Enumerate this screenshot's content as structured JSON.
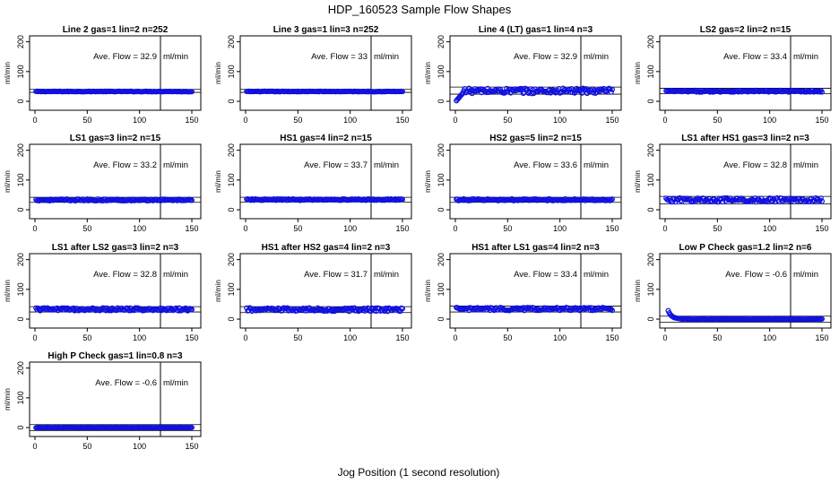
{
  "figure": {
    "title": "HDP_160523  Sample Flow Shapes",
    "xlabel": "Jog Position (1 second resolution)"
  },
  "colors": {
    "points": "#1010e0",
    "axes": "#000000"
  },
  "chart_data": [
    {
      "type": "scatter",
      "title": "Line 2 gas=1 lin=2 n=252",
      "ylabel": "ml/min",
      "xlim": [
        0,
        150
      ],
      "ylim": [
        -30,
        220
      ],
      "xticks": [
        0,
        50,
        100,
        150
      ],
      "yticks": [
        0,
        100,
        200
      ],
      "hlines": [
        30,
        40
      ],
      "vline": 120,
      "annotation": {
        "label": "Ave. Flow =",
        "value": "32.9",
        "unit": "ml/min"
      },
      "series": [
        {
          "x_range": [
            1,
            150
          ],
          "base": 33,
          "noise": 1,
          "start_drop": false,
          "start_value": null
        }
      ]
    },
    {
      "type": "scatter",
      "title": "Line 3 gas=1 lin=3 n=252",
      "ylabel": "ml/min",
      "xlim": [
        0,
        150
      ],
      "ylim": [
        -30,
        220
      ],
      "xticks": [
        0,
        50,
        100,
        150
      ],
      "yticks": [
        0,
        100,
        200
      ],
      "hlines": [
        30,
        40
      ],
      "vline": 120,
      "annotation": {
        "label": "Ave. Flow =",
        "value": "33",
        "unit": "ml/min"
      },
      "series": [
        {
          "x_range": [
            1,
            150
          ],
          "base": 33,
          "noise": 1,
          "start_drop": false,
          "start_value": null
        }
      ]
    },
    {
      "type": "scatter",
      "title": "Line 4 (LT) gas=1 lin=4 n=3",
      "ylabel": "ml/min",
      "xlim": [
        0,
        150
      ],
      "ylim": [
        -30,
        220
      ],
      "xticks": [
        0,
        50,
        100,
        150
      ],
      "yticks": [
        0,
        100,
        200
      ],
      "hlines": [
        24,
        48
      ],
      "vline": 120,
      "annotation": {
        "label": "Ave. Flow =",
        "value": "32.9",
        "unit": "ml/min"
      },
      "series": [
        {
          "x_range": [
            1,
            150
          ],
          "base": 35,
          "noise": 9,
          "start_drop": true,
          "start_value": 2
        }
      ]
    },
    {
      "type": "scatter",
      "title": "LS2 gas=2 lin=2 n=15",
      "ylabel": "ml/min",
      "xlim": [
        0,
        150
      ],
      "ylim": [
        -30,
        220
      ],
      "xticks": [
        0,
        50,
        100,
        150
      ],
      "yticks": [
        0,
        100,
        200
      ],
      "hlines": [
        26,
        44
      ],
      "vline": 120,
      "annotation": {
        "label": "Ave. Flow =",
        "value": "33.4",
        "unit": "ml/min"
      },
      "series": [
        {
          "x_range": [
            1,
            150
          ],
          "base": 34,
          "noise": 3,
          "start_drop": false,
          "start_value": null
        }
      ]
    },
    {
      "type": "scatter",
      "title": "LS1 gas=3 lin=2 n=15",
      "ylabel": "ml/min",
      "xlim": [
        0,
        150
      ],
      "ylim": [
        -30,
        220
      ],
      "xticks": [
        0,
        50,
        100,
        150
      ],
      "yticks": [
        0,
        100,
        200
      ],
      "hlines": [
        25,
        42
      ],
      "vline": 120,
      "annotation": {
        "label": "Ave. Flow =",
        "value": "33.2",
        "unit": "ml/min"
      },
      "series": [
        {
          "x_range": [
            1,
            150
          ],
          "base": 33,
          "noise": 3,
          "start_drop": false,
          "start_value": null
        }
      ]
    },
    {
      "type": "scatter",
      "title": "HS1 gas=4 lin=2 n=15",
      "ylabel": "ml/min",
      "xlim": [
        0,
        150
      ],
      "ylim": [
        -30,
        220
      ],
      "xticks": [
        0,
        50,
        100,
        150
      ],
      "yticks": [
        0,
        100,
        200
      ],
      "hlines": [
        26,
        42
      ],
      "vline": 120,
      "annotation": {
        "label": "Ave. Flow =",
        "value": "33.7",
        "unit": "ml/min"
      },
      "series": [
        {
          "x_range": [
            1,
            150
          ],
          "base": 34,
          "noise": 2.5,
          "start_drop": false,
          "start_value": null
        }
      ]
    },
    {
      "type": "scatter",
      "title": "HS2 gas=5 lin=2 n=15",
      "ylabel": "ml/min",
      "xlim": [
        0,
        150
      ],
      "ylim": [
        -30,
        220
      ],
      "xticks": [
        0,
        50,
        100,
        150
      ],
      "yticks": [
        0,
        100,
        200
      ],
      "hlines": [
        25,
        42
      ],
      "vline": 120,
      "annotation": {
        "label": "Ave. Flow =",
        "value": "33.6",
        "unit": "ml/min"
      },
      "series": [
        {
          "x_range": [
            1,
            150
          ],
          "base": 33.5,
          "noise": 3,
          "start_drop": false,
          "start_value": null
        }
      ]
    },
    {
      "type": "scatter",
      "title": "LS1 after HS1 gas=3 lin=2 n=3",
      "ylabel": "ml/min",
      "xlim": [
        0,
        150
      ],
      "ylim": [
        -30,
        220
      ],
      "xticks": [
        0,
        50,
        100,
        150
      ],
      "yticks": [
        0,
        100,
        200
      ],
      "hlines": [
        20,
        45
      ],
      "vline": 120,
      "annotation": {
        "label": "Ave. Flow =",
        "value": "32.8",
        "unit": "ml/min"
      },
      "series": [
        {
          "x_range": [
            1,
            150
          ],
          "base": 33,
          "noise": 7,
          "start_drop": false,
          "start_value": null
        }
      ]
    },
    {
      "type": "scatter",
      "title": "LS1 after LS2 gas=3 lin=2 n=3",
      "ylabel": "ml/min",
      "xlim": [
        0,
        150
      ],
      "ylim": [
        -30,
        220
      ],
      "xticks": [
        0,
        50,
        100,
        150
      ],
      "yticks": [
        0,
        100,
        200
      ],
      "hlines": [
        24,
        42
      ],
      "vline": 120,
      "annotation": {
        "label": "Ave. Flow =",
        "value": "32.8",
        "unit": "ml/min"
      },
      "series": [
        {
          "x_range": [
            1,
            150
          ],
          "base": 33,
          "noise": 5,
          "start_drop": false,
          "start_value": null
        }
      ]
    },
    {
      "type": "scatter",
      "title": "HS1 after HS2 gas=4 lin=2 n=3",
      "ylabel": "ml/min",
      "xlim": [
        0,
        150
      ],
      "ylim": [
        -30,
        220
      ],
      "xticks": [
        0,
        50,
        100,
        150
      ],
      "yticks": [
        0,
        100,
        200
      ],
      "hlines": [
        22,
        42
      ],
      "vline": 120,
      "annotation": {
        "label": "Ave. Flow =",
        "value": "31.7",
        "unit": "ml/min"
      },
      "series": [
        {
          "x_range": [
            1,
            150
          ],
          "base": 32,
          "noise": 6,
          "start_drop": false,
          "start_value": null
        }
      ]
    },
    {
      "type": "scatter",
      "title": "HS1 after LS1 gas=4 lin=2 n=3",
      "ylabel": "ml/min",
      "xlim": [
        0,
        150
      ],
      "ylim": [
        -30,
        220
      ],
      "xticks": [
        0,
        50,
        100,
        150
      ],
      "yticks": [
        0,
        100,
        200
      ],
      "hlines": [
        24,
        44
      ],
      "vline": 120,
      "annotation": {
        "label": "Ave. Flow =",
        "value": "33.4",
        "unit": "ml/min"
      },
      "series": [
        {
          "x_range": [
            1,
            150
          ],
          "base": 34,
          "noise": 5,
          "start_drop": false,
          "start_value": null
        }
      ]
    },
    {
      "type": "scatter",
      "title": "Low P Check gas=1.2 lin=2 n=6",
      "ylabel": "ml/min",
      "xlim": [
        0,
        150
      ],
      "ylim": [
        -30,
        220
      ],
      "xticks": [
        0,
        50,
        100,
        150
      ],
      "yticks": [
        0,
        100,
        200
      ],
      "hlines": [
        -10,
        10
      ],
      "vline": 120,
      "annotation": {
        "label": "Ave. Flow =",
        "value": "-0.6",
        "unit": "ml/min"
      },
      "series": [
        {
          "x_range": [
            3,
            150
          ],
          "base": 0,
          "noise": 0.6,
          "start_drop": false,
          "start_value": 28,
          "decay": true
        }
      ]
    },
    {
      "type": "scatter",
      "title": "High P Check gas=1 lin=0.8 n=3",
      "ylabel": "ml/min",
      "xlim": [
        0,
        150
      ],
      "ylim": [
        -30,
        220
      ],
      "xticks": [
        0,
        50,
        100,
        150
      ],
      "yticks": [
        0,
        100,
        200
      ],
      "hlines": [
        -10,
        10
      ],
      "vline": 120,
      "annotation": {
        "label": "Ave. Flow =",
        "value": "-0.6",
        "unit": "ml/min"
      },
      "series": [
        {
          "x_range": [
            1,
            150
          ],
          "base": 0,
          "noise": 0.6,
          "start_drop": false,
          "start_value": null
        }
      ]
    }
  ]
}
